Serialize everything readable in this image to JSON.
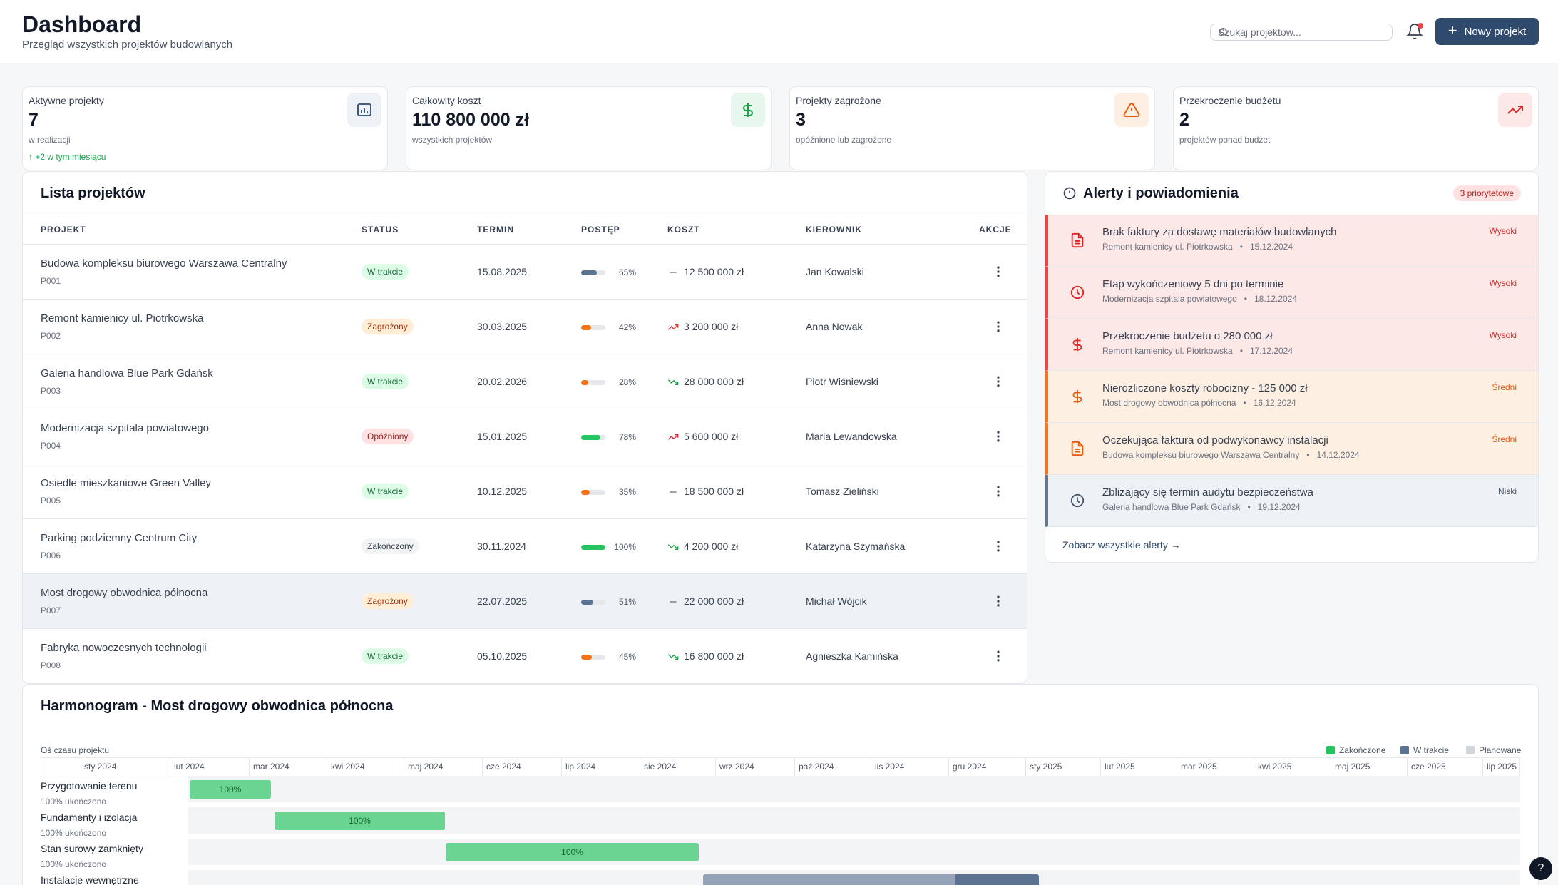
{
  "header": {
    "title": "Dashboard",
    "subtitle": "Przegląd wszystkich projektów budowlanych",
    "search_placeholder": "Szukaj projektów...",
    "new_project_label": "Nowy projekt"
  },
  "stats": [
    {
      "label": "Aktywne projekty",
      "value": "7",
      "sub": "w realizacji",
      "trend": "↑ +2 w tym miesiącu",
      "icon": "folder-chart-icon",
      "color": "#2f4a6d"
    },
    {
      "label": "Całkowity koszt",
      "value": "110 800 000 zł",
      "sub": "wszystkich projektów",
      "icon": "dollar-icon",
      "color": "#16a34a"
    },
    {
      "label": "Projekty zagrożone",
      "value": "3",
      "sub": "opóźnione lub zagrożone",
      "icon": "warning-icon",
      "color": "#ea580c"
    },
    {
      "label": "Przekroczenie budżetu",
      "value": "2",
      "sub": "projektów ponad budżet",
      "icon": "trending-up-icon",
      "color": "#dc2626"
    }
  ],
  "projects": {
    "title": "Lista projektów",
    "columns": [
      "PROJEKT",
      "STATUS",
      "TERMIN",
      "POSTĘP",
      "KOSZT",
      "KIEROWNIK",
      "AKCJE"
    ],
    "rows": [
      {
        "name": "Budowa kompleksu biurowego Warszawa Centralny",
        "id": "P001",
        "status": "W trakcie",
        "status_kind": "prog",
        "date": "15.08.2025",
        "progress": 65,
        "bar_color": "#5b7391",
        "trend": "flat",
        "cost": "12 500 000 zł",
        "manager": "Jan Kowalski"
      },
      {
        "name": "Remont kamienicy ul. Piotrkowska",
        "id": "P002",
        "status": "Zagrożony",
        "status_kind": "risk",
        "date": "30.03.2025",
        "progress": 42,
        "bar_color": "#f97316",
        "trend": "up",
        "cost": "3 200 000 zł",
        "manager": "Anna Nowak"
      },
      {
        "name": "Galeria handlowa Blue Park Gdańsk",
        "id": "P003",
        "status": "W trakcie",
        "status_kind": "prog",
        "date": "20.02.2026",
        "progress": 28,
        "bar_color": "#f97316",
        "trend": "down",
        "cost": "28 000 000 zł",
        "manager": "Piotr Wiśniewski"
      },
      {
        "name": "Modernizacja szpitala powiatowego",
        "id": "P004",
        "status": "Opóźniony",
        "status_kind": "late",
        "date": "15.01.2025",
        "progress": 78,
        "bar_color": "#22c55e",
        "trend": "up",
        "cost": "5 600 000 zł",
        "manager": "Maria Lewandowska"
      },
      {
        "name": "Osiedle mieszkaniowe Green Valley",
        "id": "P005",
        "status": "W trakcie",
        "status_kind": "prog",
        "date": "10.12.2025",
        "progress": 35,
        "bar_color": "#f97316",
        "trend": "flat",
        "cost": "18 500 000 zł",
        "manager": "Tomasz Zieliński"
      },
      {
        "name": "Parking podziemny Centrum City",
        "id": "P006",
        "status": "Zakończony",
        "status_kind": "done",
        "date": "30.11.2024",
        "progress": 100,
        "bar_color": "#22c55e",
        "trend": "down",
        "cost": "4 200 000 zł",
        "manager": "Katarzyna Szymańska"
      },
      {
        "name": "Most drogowy obwodnica północna",
        "id": "P007",
        "status": "Zagrożony",
        "status_kind": "risk",
        "date": "22.07.2025",
        "progress": 51,
        "bar_color": "#5b7391",
        "trend": "flat",
        "cost": "22 000 000 zł",
        "manager": "Michał Wójcik"
      },
      {
        "name": "Fabryka nowoczesnych technologii",
        "id": "P008",
        "status": "W trakcie",
        "status_kind": "prog",
        "date": "05.10.2025",
        "progress": 45,
        "bar_color": "#f97316",
        "trend": "down",
        "cost": "16 800 000 zł",
        "manager": "Agnieszka Kamińska"
      }
    ]
  },
  "alerts": {
    "title": "Alerty i powiadomienia",
    "priority_badge": "3 priorytetowe",
    "see_all": "Zobacz wszystkie alerty →",
    "items": [
      {
        "title": "Brak faktury za dostawę materiałów budowlanych",
        "project": "Remont kamienicy ul. Piotrkowska",
        "date": "15.12.2024",
        "level": "Wysoki",
        "kind": "high",
        "icon": "document-icon"
      },
      {
        "title": "Etap wykończeniowy 5 dni po terminie",
        "project": "Modernizacja szpitala powiatowego",
        "date": "18.12.2024",
        "level": "Wysoki",
        "kind": "high",
        "icon": "clock-icon"
      },
      {
        "title": "Przekroczenie budżetu o 280 000 zł",
        "project": "Remont kamienicy ul. Piotrkowska",
        "date": "17.12.2024",
        "level": "Wysoki",
        "kind": "high",
        "icon": "dollar-icon"
      },
      {
        "title": "Nierozliczone koszty robocizny - 125 000 zł",
        "project": "Most drogowy obwodnica północna",
        "date": "16.12.2024",
        "level": "Średni",
        "kind": "mid",
        "icon": "dollar-icon"
      },
      {
        "title": "Oczekująca faktura od podwykonawcy instalacji",
        "project": "Budowa kompleksu biurowego Warszawa Centralny",
        "date": "14.12.2024",
        "level": "Średni",
        "kind": "mid",
        "icon": "document-icon"
      },
      {
        "title": "Zbliżający się termin audytu bezpieczeństwa",
        "project": "Galeria handlowa Blue Park Gdańsk",
        "date": "19.12.2024",
        "level": "Niski",
        "kind": "low",
        "icon": "clock-icon"
      }
    ]
  },
  "gantt": {
    "title": "Harmonogram - Most drogowy obwodnica północna",
    "axis_label": "Oś czasu projektu",
    "legend": [
      {
        "label": "Zakończone",
        "color": "#22c55e"
      },
      {
        "label": "W trakcie",
        "color": "#5b7391"
      },
      {
        "label": "Planowane",
        "color": "#d1d5db"
      }
    ],
    "months": [
      "sty 2024",
      "lut 2024",
      "mar 2024",
      "kwi 2024",
      "maj 2024",
      "cze 2024",
      "lip 2024",
      "sie 2024",
      "wrz 2024",
      "paź 2024",
      "lis 2024",
      "gru 2024",
      "sty 2025",
      "lut 2025",
      "mar 2025",
      "kwi 2025",
      "maj 2025",
      "cze 2025",
      "lip 2025"
    ],
    "tasks": [
      {
        "name": "Przygotowanie terenu",
        "sub": "100% ukończono",
        "bar_label": "100%",
        "status": "done"
      },
      {
        "name": "Fundamenty i izolacja",
        "sub": "100% ukończono",
        "bar_label": "100%",
        "status": "done"
      },
      {
        "name": "Stan surowy zamknięty",
        "sub": "100% ukończono",
        "bar_label": "100%",
        "status": "done"
      },
      {
        "name": "Instalacje wewnętrzne",
        "sub": "",
        "bar_label": "",
        "status": "progress"
      }
    ]
  },
  "help_label": "?"
}
